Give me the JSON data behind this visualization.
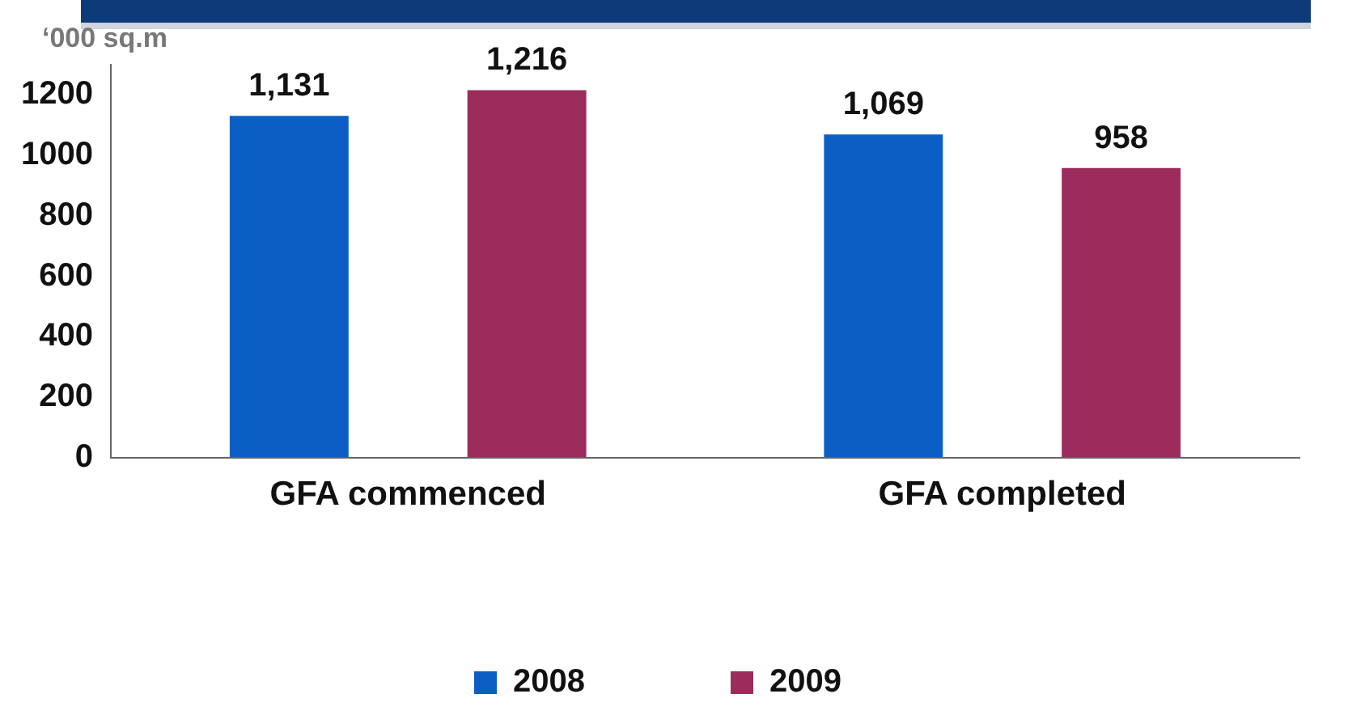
{
  "chart_data": {
    "type": "bar",
    "ylabel": "‘000 sq.m",
    "categories": [
      "GFA commenced",
      "GFA completed"
    ],
    "series": [
      {
        "name": "2008",
        "color": "#0b5fc4",
        "values": [
          1131,
          1069
        ],
        "value_labels": [
          "1,131",
          "1,069"
        ]
      },
      {
        "name": "2009",
        "color": "#9b2c5c",
        "values": [
          1216,
          958
        ],
        "value_labels": [
          "1,216",
          "958"
        ]
      }
    ],
    "ylim": [
      0,
      1300
    ],
    "yticks": [
      0,
      200,
      400,
      600,
      800,
      1000,
      1200
    ],
    "grid": false,
    "legend": "bottom"
  }
}
